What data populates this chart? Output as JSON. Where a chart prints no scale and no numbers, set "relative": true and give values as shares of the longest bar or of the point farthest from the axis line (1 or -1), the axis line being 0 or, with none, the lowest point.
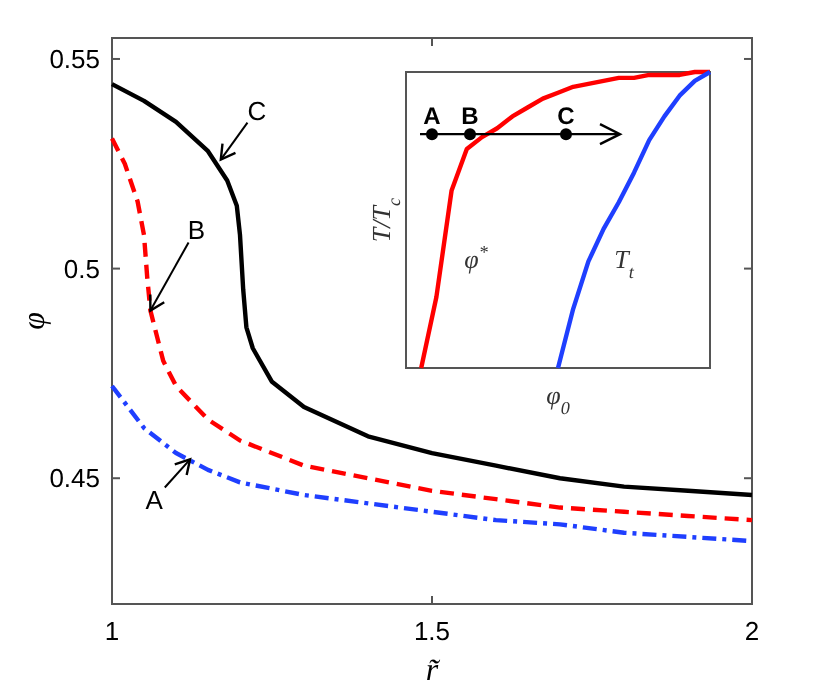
{
  "chart_data": [
    {
      "type": "line",
      "xlabel": "r̃",
      "ylabel": "φ",
      "xlim": [
        1,
        2
      ],
      "ylim": [
        0.42,
        0.555
      ],
      "xticks": [
        1,
        1.5,
        2
      ],
      "yticks": [
        0.45,
        0.5,
        0.55
      ],
      "annotations": [
        {
          "text": "C",
          "x": 1.17,
          "y": 0.526
        },
        {
          "text": "B",
          "x": 1.06,
          "y": 0.49
        },
        {
          "text": "A",
          "x": 1.122,
          "y": 0.4545
        }
      ],
      "series": [
        {
          "color": "#000000",
          "line_style": "solid",
          "x": [
            1,
            1.05,
            1.1,
            1.15,
            1.18,
            1.195,
            1.2,
            1.205,
            1.21,
            1.22,
            1.25,
            1.3,
            1.4,
            1.5,
            1.6,
            1.7,
            1.8,
            1.9,
            2
          ],
          "values": [
            0.544,
            0.54,
            0.535,
            0.528,
            0.521,
            0.515,
            0.508,
            0.495,
            0.486,
            0.481,
            0.473,
            0.467,
            0.46,
            0.456,
            0.453,
            0.45,
            0.448,
            0.447,
            0.446
          ]
        },
        {
          "color": "#ff0000",
          "line_style": "dashed",
          "x": [
            1,
            1.02,
            1.04,
            1.05,
            1.055,
            1.06,
            1.08,
            1.1,
            1.15,
            1.2,
            1.3,
            1.4,
            1.5,
            1.6,
            1.7,
            1.8,
            1.9,
            2
          ],
          "values": [
            0.531,
            0.525,
            0.516,
            0.508,
            0.498,
            0.49,
            0.478,
            0.472,
            0.464,
            0.459,
            0.453,
            0.45,
            0.447,
            0.445,
            0.443,
            0.442,
            0.441,
            0.44
          ]
        },
        {
          "color": "#1f3fff",
          "line_style": "dashdot",
          "x": [
            1,
            1.05,
            1.1,
            1.15,
            1.2,
            1.3,
            1.4,
            1.5,
            1.6,
            1.7,
            1.8,
            1.9,
            2
          ],
          "values": [
            0.472,
            0.462,
            0.456,
            0.452,
            0.449,
            0.446,
            0.444,
            0.442,
            0.44,
            0.439,
            0.437,
            0.436,
            0.435
          ]
        }
      ]
    },
    {
      "type": "line",
      "relative": true,
      "xlabel": "φ$_{0}$",
      "ylabel": "T/T$_{c}$",
      "annotations": [
        "A",
        "B",
        "C"
      ],
      "categories": [
        null,
        null,
        null,
        null,
        null,
        null,
        null,
        null,
        null,
        null,
        null,
        null,
        null,
        null,
        null,
        null,
        null,
        null,
        null,
        null,
        null
      ],
      "series": [
        {
          "name": "φ$^{*}$",
          "color": "#ff0000",
          "values": [
            null,
            0,
            0.24,
            0.6,
            0.74,
            0.78,
            0.81,
            0.85,
            0.88,
            0.91,
            0.93,
            0.95,
            0.96,
            0.97,
            0.98,
            0.98,
            0.99,
            0.99,
            0.99,
            1,
            1
          ]
        },
        {
          "name": "T$_{t}$",
          "color": "#1f3fff",
          "values": [
            null,
            null,
            null,
            null,
            null,
            null,
            null,
            null,
            null,
            null,
            0,
            0.2,
            0.36,
            0.47,
            0.56,
            0.66,
            0.77,
            0.85,
            0.92,
            0.97,
            1
          ]
        }
      ]
    }
  ]
}
